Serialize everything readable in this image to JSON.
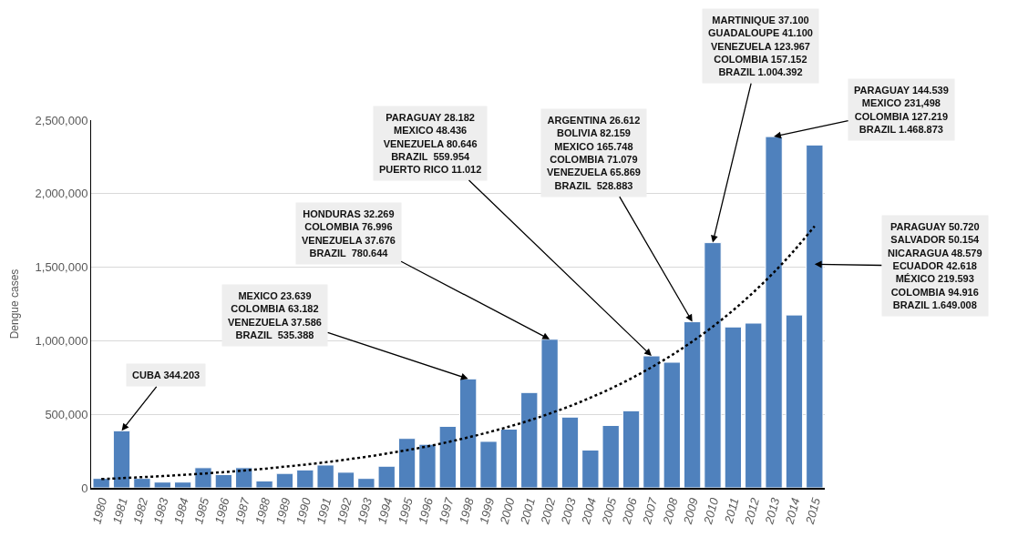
{
  "chart_data": {
    "type": "bar",
    "ylabel": "Dengue cases",
    "categories": [
      "1980",
      "1981",
      "1982",
      "1983",
      "1984",
      "1985",
      "1986",
      "1987",
      "1988",
      "1989",
      "1990",
      "1991",
      "1992",
      "1993",
      "1994",
      "1995",
      "1996",
      "1997",
      "1998",
      "1999",
      "2000",
      "2001",
      "2002",
      "2003",
      "2004",
      "2005",
      "2006",
      "2007",
      "2008",
      "2009",
      "2010",
      "2011",
      "2012",
      "2013",
      "2014",
      "2015"
    ],
    "series": [
      {
        "color": "#4f81bd",
        "values": [
          64000,
          388000,
          64000,
          39000,
          39000,
          137000,
          90000,
          137000,
          47000,
          98000,
          122000,
          155000,
          106000,
          64000,
          147000,
          336000,
          296000,
          418000,
          741000,
          316000,
          399000,
          648000,
          1010000,
          481000,
          257000,
          424000,
          524000,
          897000,
          854000,
          1129000,
          1667000,
          1094000,
          1120000,
          2388000,
          1175000,
          2331000
        ]
      },
      {
        "type": "line",
        "color": "#000000",
        "line_style": "dotted",
        "marker": "none",
        "values": [
          60000,
          66000,
          73000,
          80000,
          88000,
          97000,
          107000,
          118000,
          130000,
          144000,
          158000,
          174000,
          192000,
          211000,
          233000,
          256000,
          282000,
          311000,
          343000,
          378000,
          416000,
          458000,
          505000,
          556000,
          613000,
          675000,
          744000,
          820000,
          903000,
          995000,
          1096000,
          1207000,
          1330000,
          1465000,
          1614000,
          1779000
        ]
      }
    ],
    "ylim": [
      0,
      2500000
    ],
    "yticks": [
      0,
      {
        "value": 500000,
        "label": "500,000"
      },
      {
        "value": 1000000,
        "label": "1,000,000"
      },
      {
        "value": 1500000,
        "label": "1,500,000"
      },
      {
        "value": 2000000,
        "label": "2,000,000"
      },
      {
        "value": 2500000,
        "label": "2,500,000"
      }
    ],
    "grid": "y",
    "annotations": [
      {
        "text": "CUBA 344.203",
        "x": "1981",
        "y": 388000
      },
      {
        "text": "MEXICO 23.639\nCOLOMBIA 63.182\nVENEZUELA 37.586\nBRAZIL  535.388",
        "x": "1998",
        "y": 741000
      },
      {
        "text": "HONDURAS 32.269\nCOLOMBIA 76.996\nVENEZUELA 37.676\nBRAZIL  780.644",
        "x": "2002",
        "y": 1010000
      },
      {
        "text": "PARAGUAY 28.182\nMEXICO 48.436\nVENEZUELA 80.646\nBRAZIL  559.954\nPUERTO RICO 11.012",
        "x": "2007",
        "y": 897000
      },
      {
        "text": "ARGENTINA 26.612\nBOLIVIA 82.159\nMEXICO 165.748\nCOLOMBIA 71.079\nVENEZUELA 65.869\nBRAZIL  528.883",
        "x": "2009",
        "y": 1129000
      },
      {
        "text": "MARTINIQUE 37.100\nGUADALOUPE 41.100\nVENEZUELA 123.967\nCOLOMBIA 157.152\nBRAZIL 1.004.392",
        "x": "2010",
        "y": 1667000
      },
      {
        "text": "PARAGUAY 144.539\nMEXICO 231,498\nCOLOMBIA 127.219\nBRAZIL 1.468.873",
        "x": "2013",
        "y": 2388000
      },
      {
        "text": "PARAGUAY 50.720\nSALVADOR 50.154\nNICARAGUA 48.579\nECUADOR 42.618\nMÉXICO 219.593\nCOLOMBIA 94.916\nBRAZIL 1.649.008",
        "x": "2015",
        "y": 1520000
      }
    ]
  }
}
